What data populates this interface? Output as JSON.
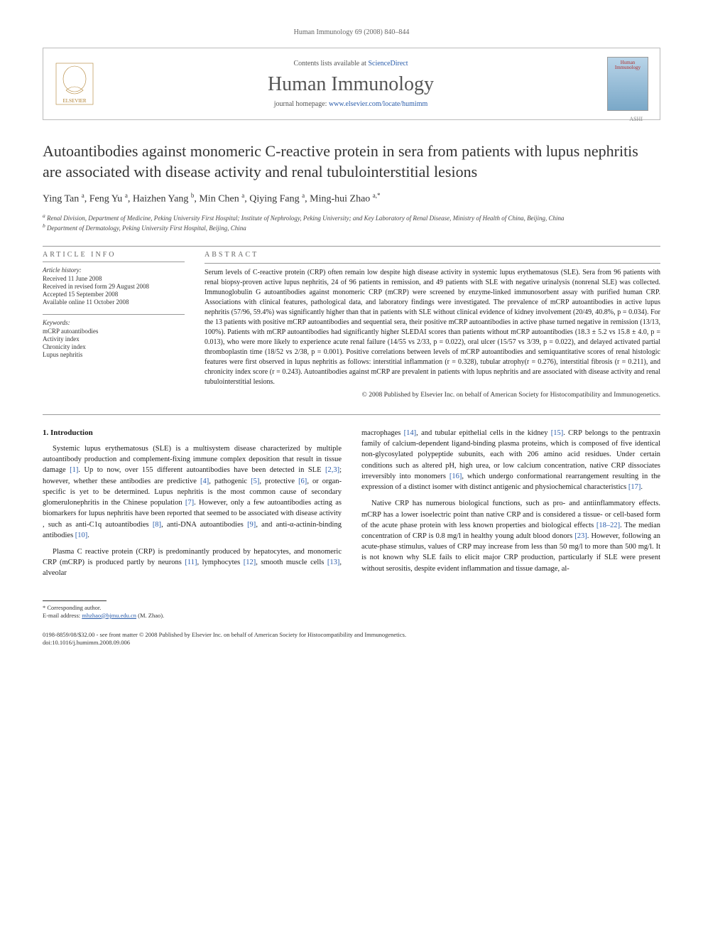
{
  "running_header": "Human Immunology 69 (2008) 840–844",
  "masthead": {
    "contents_prefix": "Contents lists available at ",
    "contents_link": "ScienceDirect",
    "journal_name": "Human Immunology",
    "homepage_prefix": "journal homepage: ",
    "homepage_url": "www.elsevier.com/locate/humimm",
    "cover_text": "Human Immunology",
    "ashi": "ASHI"
  },
  "title": "Autoantibodies against monomeric C-reactive protein in sera from patients with lupus nephritis are associated with disease activity and renal tubulointerstitial lesions",
  "authors_html": "Ying Tan <sup>a</sup>, Feng Yu <sup>a</sup>, Haizhen Yang <sup>b</sup>, Min Chen <sup>a</sup>, Qiying Fang <sup>a</sup>, Ming-hui Zhao <sup>a,*</sup>",
  "affiliations": {
    "a": "Renal Division, Department of Medicine, Peking University First Hospital; Institute of Nephrology, Peking University; and Key Laboratory of Renal Disease, Ministry of Health of China, Beijing, China",
    "b": "Department of Dermatology, Peking University First Hospital, Beijing, China"
  },
  "article_info": {
    "heading": "ARTICLE INFO",
    "history_label": "Article history:",
    "history": [
      "Received 11 June 2008",
      "Received in revised form 29 August 2008",
      "Accepted 15 September 2008",
      "Available online 11 October 2008"
    ],
    "keywords_label": "Keywords:",
    "keywords": [
      "mCRP autoantibodies",
      "Activity index",
      "Chronicity index",
      "Lupus nephritis"
    ]
  },
  "abstract": {
    "heading": "ABSTRACT",
    "text": "Serum levels of C-reactive protein (CRP) often remain low despite high disease activity in systemic lupus erythematosus (SLE). Sera from 96 patients with renal biopsy-proven active lupus nephritis, 24 of 96 patients in remission, and 49 patients with SLE with negative urinalysis (nonrenal SLE) was collected. Immunoglobulin G autoantibodies against monomeric CRP (mCRP) were screened by enzyme-linked immunosorbent assay with purified human CRP. Associations with clinical features, pathological data, and laboratory findings were investigated. The prevalence of mCRP autoantibodies in active lupus nephritis (57/96, 59.4%) was significantly higher than that in patients with SLE without clinical evidence of kidney involvement (20/49, 40.8%, p = 0.034). For the 13 patients with positive mCRP autoantibodies and sequential sera, their positive mCRP autoantibodies in active phase turned negative in remission (13/13, 100%). Patients with mCRP autoantibodies had significantly higher SLEDAI scores than patients without mCRP autoantibodies (18.3 ± 5.2 vs 15.8 ± 4.0, p = 0.013), who were more likely to experience acute renal failure (14/55 vs 2/33, p = 0.022), oral ulcer (15/57 vs 3/39, p = 0.022), and delayed activated partial thromboplastin time (18/52 vs 2/38, p = 0.001). Positive correlations between levels of mCRP autoantibodies and semiquantitative scores of renal histologic features were first observed in lupus nephritis as follows: interstitial inflammation (r = 0.328), tubular atrophy(r = 0.276), interstitial fibrosis (r = 0.211), and chronicity index score (r = 0.243). Autoantibodies against mCRP are prevalent in patients with lupus nephritis and are associated with disease activity and renal tubulointerstitial lesions.",
    "copyright": "© 2008 Published by Elsevier Inc. on behalf of American Society for Histocompatibility and Immunogenetics."
  },
  "body": {
    "section_heading": "1. Introduction",
    "col1_p1": "Systemic lupus erythematosus (SLE) is a multisystem disease characterized by multiple autoantibody production and complement-fixing immune complex deposition that result in tissue damage [1]. Up to now, over 155 different autoantibodies have been detected in SLE [2,3]; however, whether these antibodies are predictive [4], pathogenic [5], protective [6], or organ-specific is yet to be determined. Lupus nephritis is the most common cause of secondary glomerulonephritis in the Chinese population [7]. However, only a few autoantibodies acting as biomarkers for lupus nephritis have been reported that seemed to be associated with disease activity , such as anti-C1q autoantibodies [8], anti-DNA autoantibodies [9], and anti-α-actinin-binding antibodies [10].",
    "col1_p2": "Plasma C reactive protein (CRP) is predominantly produced by hepatocytes, and monomeric CRP (mCRP) is produced partly by neurons [11], lymphocytes [12], smooth muscle cells [13], alveolar",
    "col2_p1": "macrophages [14], and tubular epithelial cells in the kidney [15]. CRP belongs to the pentraxin family of calcium-dependent ligand-binding plasma proteins, which is composed of five identical non-glycosylated polypeptide subunits, each with 206 amino acid residues. Under certain conditions such as altered pH, high urea, or low calcium concentration, native CRP dissociates irreversibly into monomers [16], which undergo conformational rearrangement resulting in the expression of a distinct isomer with distinct antigenic and physiochemical characteristics [17].",
    "col2_p2": "Native CRP has numerous biological functions, such as pro- and antiinflammatory effects. mCRP has a lower isoelectric point than native CRP and is considered a tissue- or cell-based form of the acute phase protein with less known properties and biological effects [18–22]. The median concentration of CRP is 0.8 mg/l in healthy young adult blood donors [23]. However, following an acute-phase stimulus, values of CRP may increase from less than 50 mg/l to more than 500 mg/l. It is not known why SLE fails to elicit major CRP production, particularly if SLE were present without serositis, despite evident inflammation and tissue damage, al-"
  },
  "footnote": {
    "corresponding": "* Corresponding author.",
    "email_label": "E-mail address: ",
    "email": "mhzhao@bjmu.edu.cn",
    "email_suffix": " (M. Zhao)."
  },
  "footer": {
    "line1": "0198-8859/08/$32.00 - see front matter © 2008 Published by Elsevier Inc. on behalf of American Society for Histocompatibility and Immunogenetics.",
    "line2": "doi:10.1016/j.humimm.2008.09.006"
  },
  "colors": {
    "link": "#2a5caa",
    "text": "#1a1a1a",
    "muted": "#666666",
    "border": "#bbbbbb"
  }
}
